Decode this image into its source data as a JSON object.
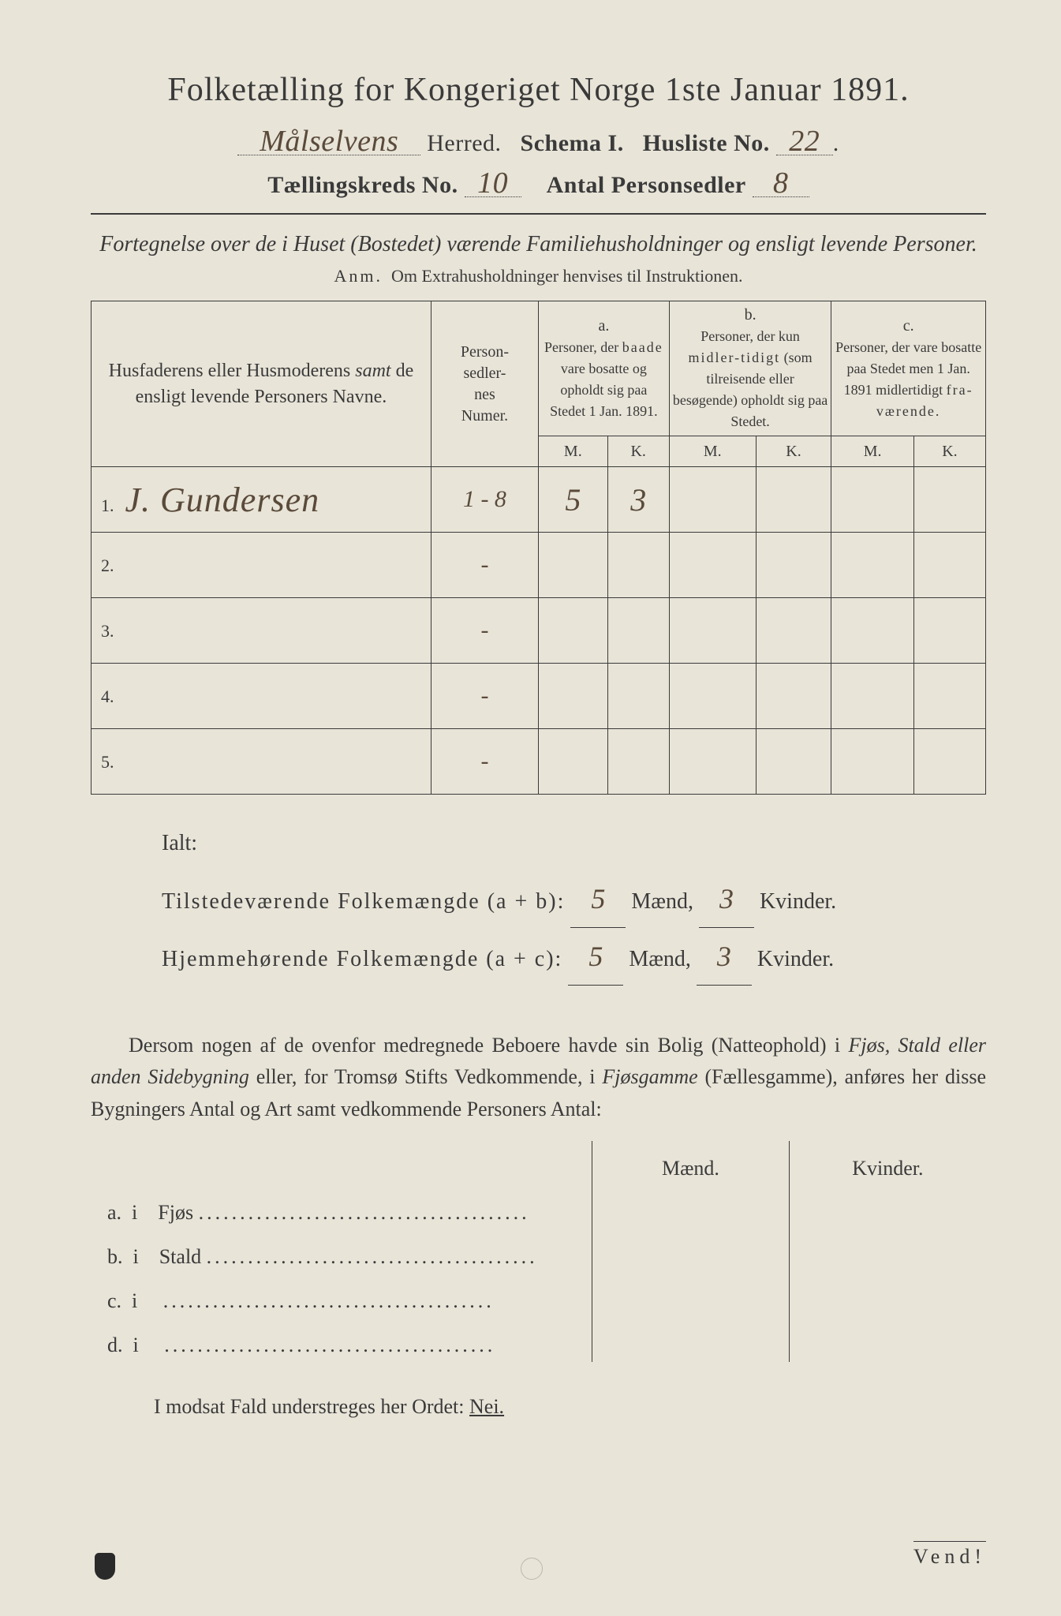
{
  "title": "Folketælling for Kongeriget Norge 1ste Januar 1891.",
  "header": {
    "herred_value": "Målselvens",
    "herred_label": "Herred.",
    "schema_label": "Schema I.",
    "husliste_label": "Husliste No.",
    "husliste_value": "22",
    "kreds_label": "Tællingskreds No.",
    "kreds_value": "10",
    "antal_label": "Antal Personsedler",
    "antal_value": "8"
  },
  "subtitle": "Fortegnelse over de i Huset (Bostedet) værende Familiehusholdninger og ensligt levende Personer.",
  "anm_prefix": "Anm.",
  "anm_text": "Om Extrahusholdninger henvises til Instruktionen.",
  "table": {
    "name_head": "Husfaderens eller Husmoderens samt de ensligt levende Personers Navne.",
    "num_head": "Person-sedler-nes Numer.",
    "col_a_label": "a.",
    "col_a_text": "Personer, der baade vare bosatte og opholdt sig paa Stedet 1 Jan. 1891.",
    "col_b_label": "b.",
    "col_b_text": "Personer, der kun midlertidigt (som tilreisende eller besøgende) opholdt sig paa Stedet.",
    "col_c_label": "c.",
    "col_c_text": "Personer, der vare bosatte paa Stedet men 1 Jan. 1891 midlertidigt fraværende.",
    "M": "M.",
    "K": "K.",
    "rows": [
      {
        "n": "1.",
        "name": "J. Gundersen",
        "num": "1 - 8",
        "aM": "5",
        "aK": "3",
        "bM": "",
        "bK": "",
        "cM": "",
        "cK": ""
      },
      {
        "n": "2.",
        "name": "",
        "num": "-",
        "aM": "",
        "aK": "",
        "bM": "",
        "bK": "",
        "cM": "",
        "cK": ""
      },
      {
        "n": "3.",
        "name": "",
        "num": "-",
        "aM": "",
        "aK": "",
        "bM": "",
        "bK": "",
        "cM": "",
        "cK": ""
      },
      {
        "n": "4.",
        "name": "",
        "num": "-",
        "aM": "",
        "aK": "",
        "bM": "",
        "bK": "",
        "cM": "",
        "cK": ""
      },
      {
        "n": "5.",
        "name": "",
        "num": "-",
        "aM": "",
        "aK": "",
        "bM": "",
        "bK": "",
        "cM": "",
        "cK": ""
      }
    ]
  },
  "totals": {
    "ialt": "Ialt:",
    "line1_label": "Tilstedeværende Folkemængde (a + b):",
    "line2_label": "Hjemmehørende Folkemængde (a + c):",
    "maend": "Mænd,",
    "kvinder": "Kvinder.",
    "l1_m": "5",
    "l1_k": "3",
    "l2_m": "5",
    "l2_k": "3"
  },
  "para": "Dersom nogen af de ovenfor medregnede Beboere havde sin Bolig (Natteophold) i Fjøs, Stald eller anden Sidebygning eller, for Tromsø Stifts Vedkommende, i Fjøsgamme (Fællesgamme), anføres her disse Bygningers Antal og Art samt vedkommende Personers Antal:",
  "dwell": {
    "maend": "Mænd.",
    "kvinder": "Kvinder.",
    "rows": [
      {
        "k": "a.",
        "i": "i",
        "t": "Fjøs"
      },
      {
        "k": "b.",
        "i": "i",
        "t": "Stald"
      },
      {
        "k": "c.",
        "i": "i",
        "t": ""
      },
      {
        "k": "d.",
        "i": "i",
        "t": ""
      }
    ]
  },
  "nei_line_pre": "I modsat Fald understreges her Ordet:",
  "nei": "Nei.",
  "vend": "Vend!"
}
